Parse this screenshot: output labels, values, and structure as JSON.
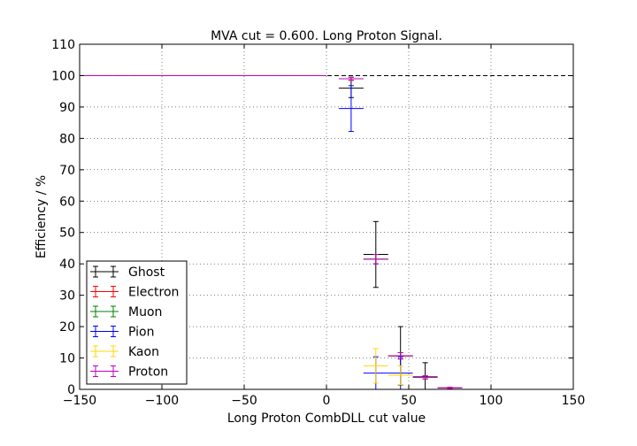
{
  "chart_data": {
    "type": "scatter",
    "title": "MVA cut = 0.600. Long Proton Signal.",
    "xlabel": "Long Proton CombDLL cut value",
    "ylabel": "Efficiency / %",
    "xlim": [
      -150,
      150
    ],
    "ylim": [
      0,
      110
    ],
    "xticks": [
      "−150",
      "−100",
      "−50",
      "0",
      "50",
      "100",
      "150"
    ],
    "yticks": [
      "0",
      "10",
      "20",
      "30",
      "40",
      "50",
      "60",
      "70",
      "80",
      "90",
      "100",
      "110"
    ],
    "grid": true,
    "legend_position": "lower-left",
    "reference_line": {
      "y": 100,
      "style": "dashed"
    },
    "series": [
      {
        "name": "Ghost",
        "color": "#000000",
        "points": [
          {
            "x": -147.5,
            "y": 100,
            "xerr": 2.5,
            "yerr": 0
          },
          {
            "x": -142.5,
            "y": 100,
            "xerr": 2.5,
            "yerr": 0
          },
          {
            "x": -137.5,
            "y": 100,
            "xerr": 2.5,
            "yerr": 0
          },
          {
            "x": -132.5,
            "y": 100,
            "xerr": 2.5,
            "yerr": 0
          },
          {
            "x": -127.5,
            "y": 100,
            "xerr": 2.5,
            "yerr": 0
          },
          {
            "x": -122.5,
            "y": 100,
            "xerr": 2.5,
            "yerr": 0
          },
          {
            "x": -117.5,
            "y": 100,
            "xerr": 2.5,
            "yerr": 0
          },
          {
            "x": -112.5,
            "y": 100,
            "xerr": 2.5,
            "yerr": 0
          },
          {
            "x": -107.5,
            "y": 100,
            "xerr": 2.5,
            "yerr": 0
          },
          {
            "x": -102.5,
            "y": 100,
            "xerr": 2.5,
            "yerr": 0
          },
          {
            "x": -97.5,
            "y": 100,
            "xerr": 2.5,
            "yerr": 0
          },
          {
            "x": -92.5,
            "y": 100,
            "xerr": 2.5,
            "yerr": 0
          },
          {
            "x": -87.5,
            "y": 100,
            "xerr": 2.5,
            "yerr": 0
          },
          {
            "x": -82.5,
            "y": 100,
            "xerr": 2.5,
            "yerr": 0
          },
          {
            "x": -77.5,
            "y": 100,
            "xerr": 2.5,
            "yerr": 0
          },
          {
            "x": -72.5,
            "y": 100,
            "xerr": 2.5,
            "yerr": 0
          },
          {
            "x": -67.5,
            "y": 100,
            "xerr": 2.5,
            "yerr": 0
          },
          {
            "x": -62.5,
            "y": 100,
            "xerr": 2.5,
            "yerr": 0
          },
          {
            "x": -57.5,
            "y": 100,
            "xerr": 2.5,
            "yerr": 0
          },
          {
            "x": -52.5,
            "y": 100,
            "xerr": 2.5,
            "yerr": 0
          },
          {
            "x": -47.5,
            "y": 100,
            "xerr": 2.5,
            "yerr": 0
          },
          {
            "x": -42.5,
            "y": 100,
            "xerr": 2.5,
            "yerr": 0
          },
          {
            "x": -37.5,
            "y": 100,
            "xerr": 2.5,
            "yerr": 0
          },
          {
            "x": -32.5,
            "y": 100,
            "xerr": 2.5,
            "yerr": 0
          },
          {
            "x": -27.5,
            "y": 100,
            "xerr": 2.5,
            "yerr": 0
          },
          {
            "x": -22.5,
            "y": 100,
            "xerr": 2.5,
            "yerr": 0
          },
          {
            "x": -17.5,
            "y": 100,
            "xerr": 2.5,
            "yerr": 0
          },
          {
            "x": -12.5,
            "y": 100,
            "xerr": 2.5,
            "yerr": 0
          },
          {
            "x": -7.5,
            "y": 100,
            "xerr": 2.5,
            "yerr": 0
          },
          {
            "x": -2.5,
            "y": 100,
            "xerr": 2.5,
            "yerr": 0
          },
          {
            "x": 15,
            "y": 96,
            "xerr": 7.5,
            "yerr": 3
          },
          {
            "x": 30,
            "y": 43,
            "xerr": 7.5,
            "yerr": 10.5
          },
          {
            "x": 45,
            "y": 10.7,
            "xerr": 7.5,
            "yerr": 9.3
          },
          {
            "x": 60,
            "y": 4,
            "xerr": 7.5,
            "yerr": 4.5
          },
          {
            "x": 75,
            "y": 0.5,
            "xerr": 7.5,
            "yerr": 0
          }
        ]
      },
      {
        "name": "Electron",
        "color": "#ff0000",
        "points": [
          {
            "x": -75,
            "y": 100,
            "xerr": 75,
            "yerr": 0
          },
          {
            "x": 15,
            "y": 99,
            "xerr": 7.5,
            "yerr": 0.5
          },
          {
            "x": 30,
            "y": 41.5,
            "xerr": 7.5,
            "yerr": 1.5
          },
          {
            "x": 45,
            "y": 10.7,
            "xerr": 7.5,
            "yerr": 1
          },
          {
            "x": 60,
            "y": 3.8,
            "xerr": 7.5,
            "yerr": 0.5
          },
          {
            "x": 75,
            "y": 0.5,
            "xerr": 7.5,
            "yerr": 0.2
          }
        ]
      },
      {
        "name": "Muon",
        "color": "#008000",
        "points": [
          {
            "x": -75,
            "y": 100,
            "xerr": 75,
            "yerr": 0
          },
          {
            "x": 15,
            "y": 99,
            "xerr": 7.5,
            "yerr": 0.5
          },
          {
            "x": 30,
            "y": 41.5,
            "xerr": 7.5,
            "yerr": 1.5
          },
          {
            "x": 45,
            "y": 10.7,
            "xerr": 7.5,
            "yerr": 1
          },
          {
            "x": 60,
            "y": 3.8,
            "xerr": 7.5,
            "yerr": 0.5
          },
          {
            "x": 75,
            "y": 0.5,
            "xerr": 7.5,
            "yerr": 0.2
          }
        ]
      },
      {
        "name": "Pion",
        "color": "#0000ff",
        "points": [
          {
            "x": -75,
            "y": 100,
            "xerr": 75,
            "yerr": 0
          },
          {
            "x": 15,
            "y": 89.5,
            "xerr": 7.5,
            "yerr": 7.3
          },
          {
            "x": 30,
            "y": 5.2,
            "xerr": 7.5,
            "yerr": 5.2
          },
          {
            "x": 45,
            "y": 5.2,
            "xerr": 7.5,
            "yerr": 5.2
          },
          {
            "x": 60,
            "y": 3.8,
            "xerr": 7.5,
            "yerr": 0.5
          },
          {
            "x": 75,
            "y": 0.5,
            "xerr": 7.5,
            "yerr": 0.2
          }
        ]
      },
      {
        "name": "Kaon",
        "color": "#ffd700",
        "points": [
          {
            "x": -75,
            "y": 100,
            "xerr": 75,
            "yerr": 0
          },
          {
            "x": 15,
            "y": 99,
            "xerr": 7.5,
            "yerr": 0.5
          },
          {
            "x": 30,
            "y": 7.5,
            "xerr": 7.5,
            "yerr": 5.5
          },
          {
            "x": 45,
            "y": 4.5,
            "xerr": 7.5,
            "yerr": 3
          },
          {
            "x": 60,
            "y": 3.8,
            "xerr": 7.5,
            "yerr": 0.5
          },
          {
            "x": 75,
            "y": 0.5,
            "xerr": 7.5,
            "yerr": 0.2
          }
        ]
      },
      {
        "name": "Proton",
        "color": "#bf00bf",
        "points": [
          {
            "x": -147.5,
            "y": 100,
            "xerr": 2.5,
            "yerr": 0
          },
          {
            "x": -142.5,
            "y": 100,
            "xerr": 2.5,
            "yerr": 0
          },
          {
            "x": -137.5,
            "y": 100,
            "xerr": 2.5,
            "yerr": 0
          },
          {
            "x": -132.5,
            "y": 100,
            "xerr": 2.5,
            "yerr": 0
          },
          {
            "x": -127.5,
            "y": 100,
            "xerr": 2.5,
            "yerr": 0
          },
          {
            "x": -122.5,
            "y": 100,
            "xerr": 2.5,
            "yerr": 0
          },
          {
            "x": -117.5,
            "y": 100,
            "xerr": 2.5,
            "yerr": 0
          },
          {
            "x": -112.5,
            "y": 100,
            "xerr": 2.5,
            "yerr": 0
          },
          {
            "x": -107.5,
            "y": 100,
            "xerr": 2.5,
            "yerr": 0
          },
          {
            "x": -102.5,
            "y": 100,
            "xerr": 2.5,
            "yerr": 0
          },
          {
            "x": -97.5,
            "y": 100,
            "xerr": 2.5,
            "yerr": 0
          },
          {
            "x": -92.5,
            "y": 100,
            "xerr": 2.5,
            "yerr": 0
          },
          {
            "x": -87.5,
            "y": 100,
            "xerr": 2.5,
            "yerr": 0
          },
          {
            "x": -82.5,
            "y": 100,
            "xerr": 2.5,
            "yerr": 0
          },
          {
            "x": -77.5,
            "y": 100,
            "xerr": 2.5,
            "yerr": 0
          },
          {
            "x": -72.5,
            "y": 100,
            "xerr": 2.5,
            "yerr": 0
          },
          {
            "x": -67.5,
            "y": 100,
            "xerr": 2.5,
            "yerr": 0
          },
          {
            "x": -62.5,
            "y": 100,
            "xerr": 2.5,
            "yerr": 0
          },
          {
            "x": -57.5,
            "y": 100,
            "xerr": 2.5,
            "yerr": 0
          },
          {
            "x": -52.5,
            "y": 100,
            "xerr": 2.5,
            "yerr": 0
          },
          {
            "x": -47.5,
            "y": 100,
            "xerr": 2.5,
            "yerr": 0
          },
          {
            "x": -42.5,
            "y": 100,
            "xerr": 2.5,
            "yerr": 0
          },
          {
            "x": -37.5,
            "y": 100,
            "xerr": 2.5,
            "yerr": 0
          },
          {
            "x": -32.5,
            "y": 100,
            "xerr": 2.5,
            "yerr": 0
          },
          {
            "x": -27.5,
            "y": 100,
            "xerr": 2.5,
            "yerr": 0
          },
          {
            "x": -22.5,
            "y": 100,
            "xerr": 2.5,
            "yerr": 0
          },
          {
            "x": -17.5,
            "y": 100,
            "xerr": 2.5,
            "yerr": 0
          },
          {
            "x": -12.5,
            "y": 100,
            "xerr": 2.5,
            "yerr": 0
          },
          {
            "x": -7.5,
            "y": 100,
            "xerr": 2.5,
            "yerr": 0
          },
          {
            "x": -2.5,
            "y": 100,
            "xerr": 2.5,
            "yerr": 0
          },
          {
            "x": 15,
            "y": 99,
            "xerr": 7.5,
            "yerr": 0.5
          },
          {
            "x": 30,
            "y": 41.5,
            "xerr": 7.5,
            "yerr": 1.5
          },
          {
            "x": 45,
            "y": 10.7,
            "xerr": 7.5,
            "yerr": 1
          },
          {
            "x": 60,
            "y": 3.8,
            "xerr": 7.5,
            "yerr": 0.5
          },
          {
            "x": 75,
            "y": 0.5,
            "xerr": 7.5,
            "yerr": 0.2
          }
        ]
      }
    ]
  }
}
